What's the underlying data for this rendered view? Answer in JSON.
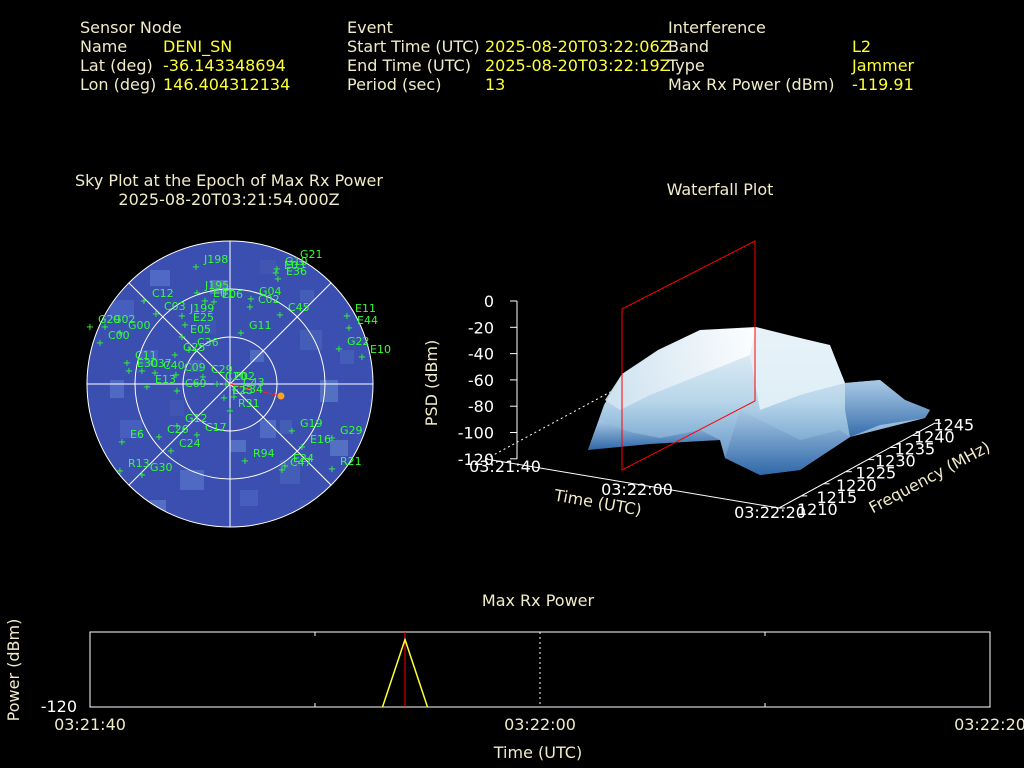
{
  "sensor_node": {
    "heading": "Sensor Node",
    "name_label": "Name",
    "name_value": "DENI_SN",
    "lat_label": "Lat (deg)",
    "lat_value": "-36.143348694",
    "lon_label": "Lon (deg)",
    "lon_value": "146.404312134"
  },
  "event": {
    "heading": "Event",
    "start_label": "Start Time (UTC)",
    "start_value": "2025-08-20T03:22:06Z",
    "end_label": "End Time (UTC)",
    "end_value": "2025-08-20T03:22:19Z",
    "period_label": "Period (sec)",
    "period_value": "13"
  },
  "interference": {
    "heading": "Interference",
    "band_label": "Band",
    "band_value": "L2",
    "type_label": "Type",
    "type_value": "Jammer",
    "power_label": "Max Rx Power (dBm)",
    "power_value": "-119.91"
  },
  "colors": {
    "background": "#000000",
    "label_text": "#f0ecc8",
    "value_text": "#ffff33",
    "satellite_green": "#33ff33",
    "sky_disc": "#3a4fb0",
    "box_red": "#ff0000",
    "sun_orange": "#ffa020"
  },
  "sky_plot": {
    "title_line1": "Sky Plot at the Epoch of Max Rx Power",
    "title_line2": "2025-08-20T03:21:54.000Z",
    "satellites": [
      "J198",
      "G10",
      "G21",
      "E03",
      "E36",
      "C12",
      "J195",
      "E06",
      "E01",
      "G04",
      "C02",
      "G29",
      "C03",
      "J199",
      "C45",
      "E11",
      "G02",
      "G00",
      "C00",
      "E25",
      "E05",
      "G11",
      "E44",
      "G25",
      "C36",
      "G22",
      "E10",
      "C11",
      "E30",
      "C37",
      "C40",
      "C09",
      "C29",
      "E02",
      "E13",
      "C43",
      "C20",
      "E34",
      "C69",
      "G12",
      "G19",
      "E16",
      "G29",
      "C17",
      "E6",
      "C26",
      "C24",
      "R13",
      "G30",
      "R94",
      "E24",
      "R21",
      "C47",
      "R31",
      "E23"
    ],
    "sun_marker": "sun"
  },
  "waterfall": {
    "title": "Waterfall Plot",
    "psd_ticks": [
      "0",
      "-20",
      "-40",
      "-60",
      "-80",
      "-100",
      "-120"
    ],
    "time_ticks": [
      "03:21:40",
      "03:22:00",
      "03:22:20"
    ],
    "freq_ticks": [
      "1210",
      "1215",
      "1220",
      "1225",
      "1230",
      "1235",
      "1240",
      "1245"
    ],
    "zlabel": "PSD (dBm)",
    "xlabel": "Time (UTC)",
    "ylabel": "Frequency (MHz)"
  },
  "chart_data": {
    "type": "line",
    "title": "Max Rx Power",
    "xlabel": "Time (UTC)",
    "ylabel": "Power (dBm)",
    "x_ticks": [
      "03:21:40",
      "03:22:00",
      "03:22:20"
    ],
    "y_ticks": [
      "-120"
    ],
    "ylim": [
      -120,
      -119.9
    ],
    "x_range": [
      "03:21:40",
      "03:22:20"
    ],
    "grid": true,
    "series": [
      {
        "x": [
          "03:21:53",
          "03:21:54",
          "03:21:55"
        ],
        "values": [
          -120,
          -119.91,
          -120
        ]
      }
    ],
    "max_epoch_marker": "03:21:54"
  }
}
